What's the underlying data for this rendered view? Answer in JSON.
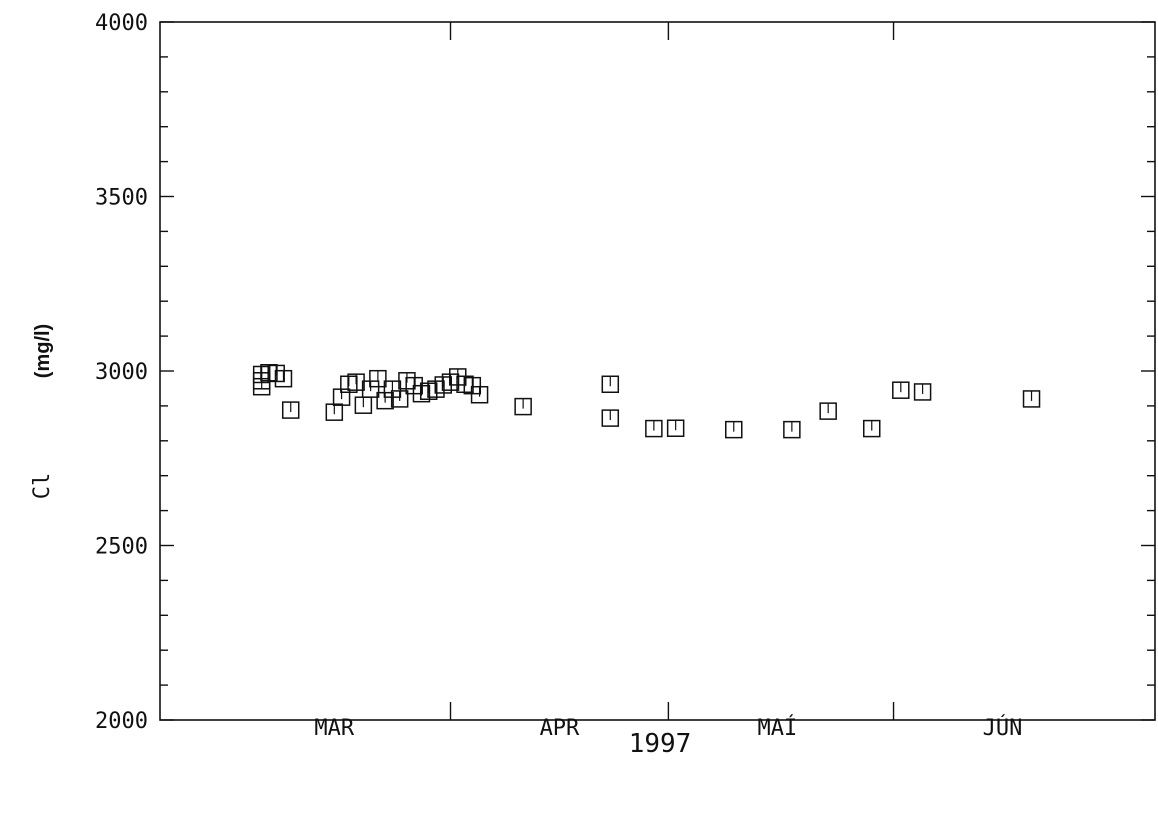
{
  "chart_data": {
    "type": "scatter",
    "title": "",
    "xlabel": "1997",
    "ylabel_main": "Cl",
    "ylabel_unit": "(mg/l)",
    "ylim": [
      2000,
      4000
    ],
    "y_ticks": [
      2000,
      2500,
      3000,
      3500,
      4000
    ],
    "y_tick_labels": [
      "2000",
      "2500",
      "3000",
      "3500",
      "4000"
    ],
    "xlim": [
      "1997-02-20",
      "1997-07-07"
    ],
    "x_month_labels": [
      {
        "label": "MAR",
        "date": "1997-03-16"
      },
      {
        "label": "APR",
        "date": "1997-04-16"
      },
      {
        "label": "MAÍ",
        "date": "1997-05-16"
      },
      {
        "label": "JÚN",
        "date": "1997-06-16"
      }
    ],
    "x_month_ticks": [
      "1997-04-01",
      "1997-05-01",
      "1997-06-01"
    ],
    "grid": false,
    "marker": "square",
    "points": [
      {
        "x": "1997-03-06",
        "y": 2955
      },
      {
        "x": "1997-03-06",
        "y": 2972
      },
      {
        "x": "1997-03-06",
        "y": 2990
      },
      {
        "x": "1997-03-07",
        "y": 2995
      },
      {
        "x": "1997-03-08",
        "y": 2993
      },
      {
        "x": "1997-03-09",
        "y": 2978
      },
      {
        "x": "1997-03-10",
        "y": 2888
      },
      {
        "x": "1997-03-16",
        "y": 2882
      },
      {
        "x": "1997-03-17",
        "y": 2925
      },
      {
        "x": "1997-03-18",
        "y": 2962
      },
      {
        "x": "1997-03-19",
        "y": 2968
      },
      {
        "x": "1997-03-20",
        "y": 2902
      },
      {
        "x": "1997-03-21",
        "y": 2948
      },
      {
        "x": "1997-03-22",
        "y": 2978
      },
      {
        "x": "1997-03-23",
        "y": 2915
      },
      {
        "x": "1997-03-24",
        "y": 2948
      },
      {
        "x": "1997-03-25",
        "y": 2920
      },
      {
        "x": "1997-03-26",
        "y": 2972
      },
      {
        "x": "1997-03-27",
        "y": 2958
      },
      {
        "x": "1997-03-28",
        "y": 2935
      },
      {
        "x": "1997-03-29",
        "y": 2942
      },
      {
        "x": "1997-03-30",
        "y": 2948
      },
      {
        "x": "1997-03-31",
        "y": 2960
      },
      {
        "x": "1997-04-01",
        "y": 2968
      },
      {
        "x": "1997-04-02",
        "y": 2983
      },
      {
        "x": "1997-04-03",
        "y": 2962
      },
      {
        "x": "1997-04-04",
        "y": 2958
      },
      {
        "x": "1997-04-05",
        "y": 2932
      },
      {
        "x": "1997-04-11",
        "y": 2898
      },
      {
        "x": "1997-04-23",
        "y": 2962
      },
      {
        "x": "1997-04-23",
        "y": 2865
      },
      {
        "x": "1997-04-29",
        "y": 2835
      },
      {
        "x": "1997-05-02",
        "y": 2836
      },
      {
        "x": "1997-05-10",
        "y": 2832
      },
      {
        "x": "1997-05-18",
        "y": 2832
      },
      {
        "x": "1997-05-23",
        "y": 2885
      },
      {
        "x": "1997-05-29",
        "y": 2835
      },
      {
        "x": "1997-06-02",
        "y": 2945
      },
      {
        "x": "1997-06-05",
        "y": 2940
      },
      {
        "x": "1997-06-20",
        "y": 2920
      }
    ]
  }
}
